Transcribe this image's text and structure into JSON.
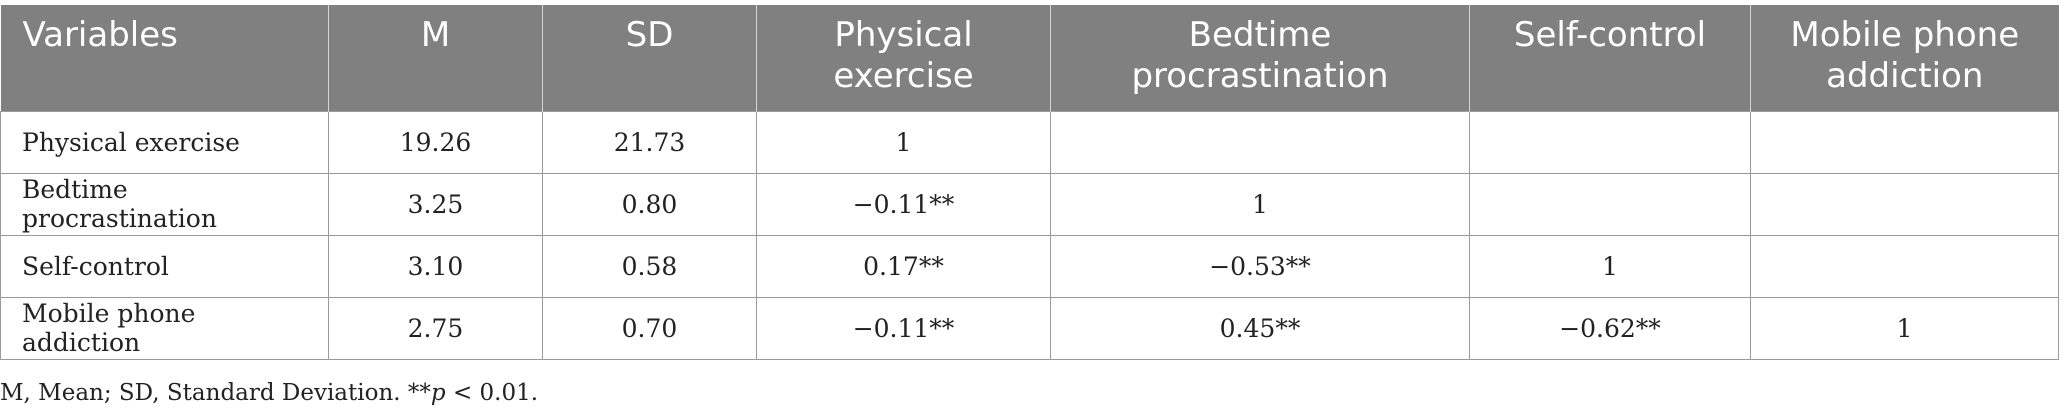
{
  "table": {
    "headers": [
      "Variables",
      "M",
      "SD",
      "Physical exercise",
      "Bedtime procrastination",
      "Self-control",
      "Mobile phone addiction"
    ],
    "rows": [
      [
        "Physical exercise",
        "19.26",
        "21.73",
        "1",
        "",
        "",
        ""
      ],
      [
        "Bedtime procrastination",
        "3.25",
        "0.80",
        "−0.11**",
        "1",
        "",
        ""
      ],
      [
        "Self-control",
        "3.10",
        "0.58",
        "0.17**",
        "−0.53**",
        "1",
        ""
      ],
      [
        "Mobile phone addiction",
        "2.75",
        "0.70",
        "−0.11**",
        "0.45**",
        "−0.62**",
        "1"
      ]
    ]
  },
  "footnote": {
    "prefix": "M, Mean; SD, Standard Deviation. **",
    "p": "p",
    "suffix": " < 0.01."
  }
}
